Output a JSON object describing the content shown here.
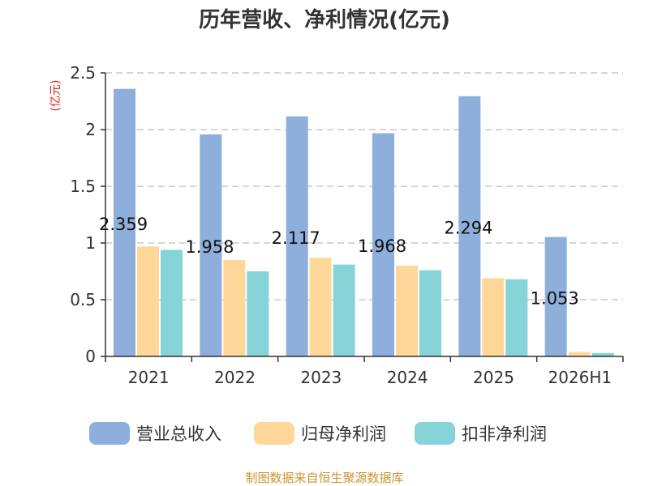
{
  "chart_data": {
    "type": "bar",
    "title": "历年营收、净利情况(亿元)",
    "ylabel": "(亿元)",
    "xlabel": "",
    "categories": [
      "2021",
      "2022",
      "2023",
      "2024",
      "2025",
      "2026H1"
    ],
    "ylim": [
      0,
      2.5
    ],
    "yticks": [
      "0",
      "0.5",
      "1",
      "1.5",
      "2",
      "2.5"
    ],
    "grid": true,
    "legend_position": "bottom",
    "series": [
      {
        "name": "营业总收入",
        "color": "#8eaedb",
        "values": [
          2.359,
          1.958,
          2.117,
          1.968,
          2.294,
          1.053
        ]
      },
      {
        "name": "归母净利润",
        "color": "#ffd899",
        "values": [
          0.97,
          0.85,
          0.87,
          0.8,
          0.69,
          0.04
        ]
      },
      {
        "name": "扣非净利润",
        "color": "#86d4d8",
        "values": [
          0.94,
          0.75,
          0.81,
          0.76,
          0.68,
          0.03
        ]
      }
    ],
    "data_labels": [
      "2.359",
      "1.958",
      "2.117",
      "1.968",
      "2.294",
      "1.053"
    ]
  },
  "footer": {
    "source": "制图数据来自恒生聚源数据库"
  }
}
